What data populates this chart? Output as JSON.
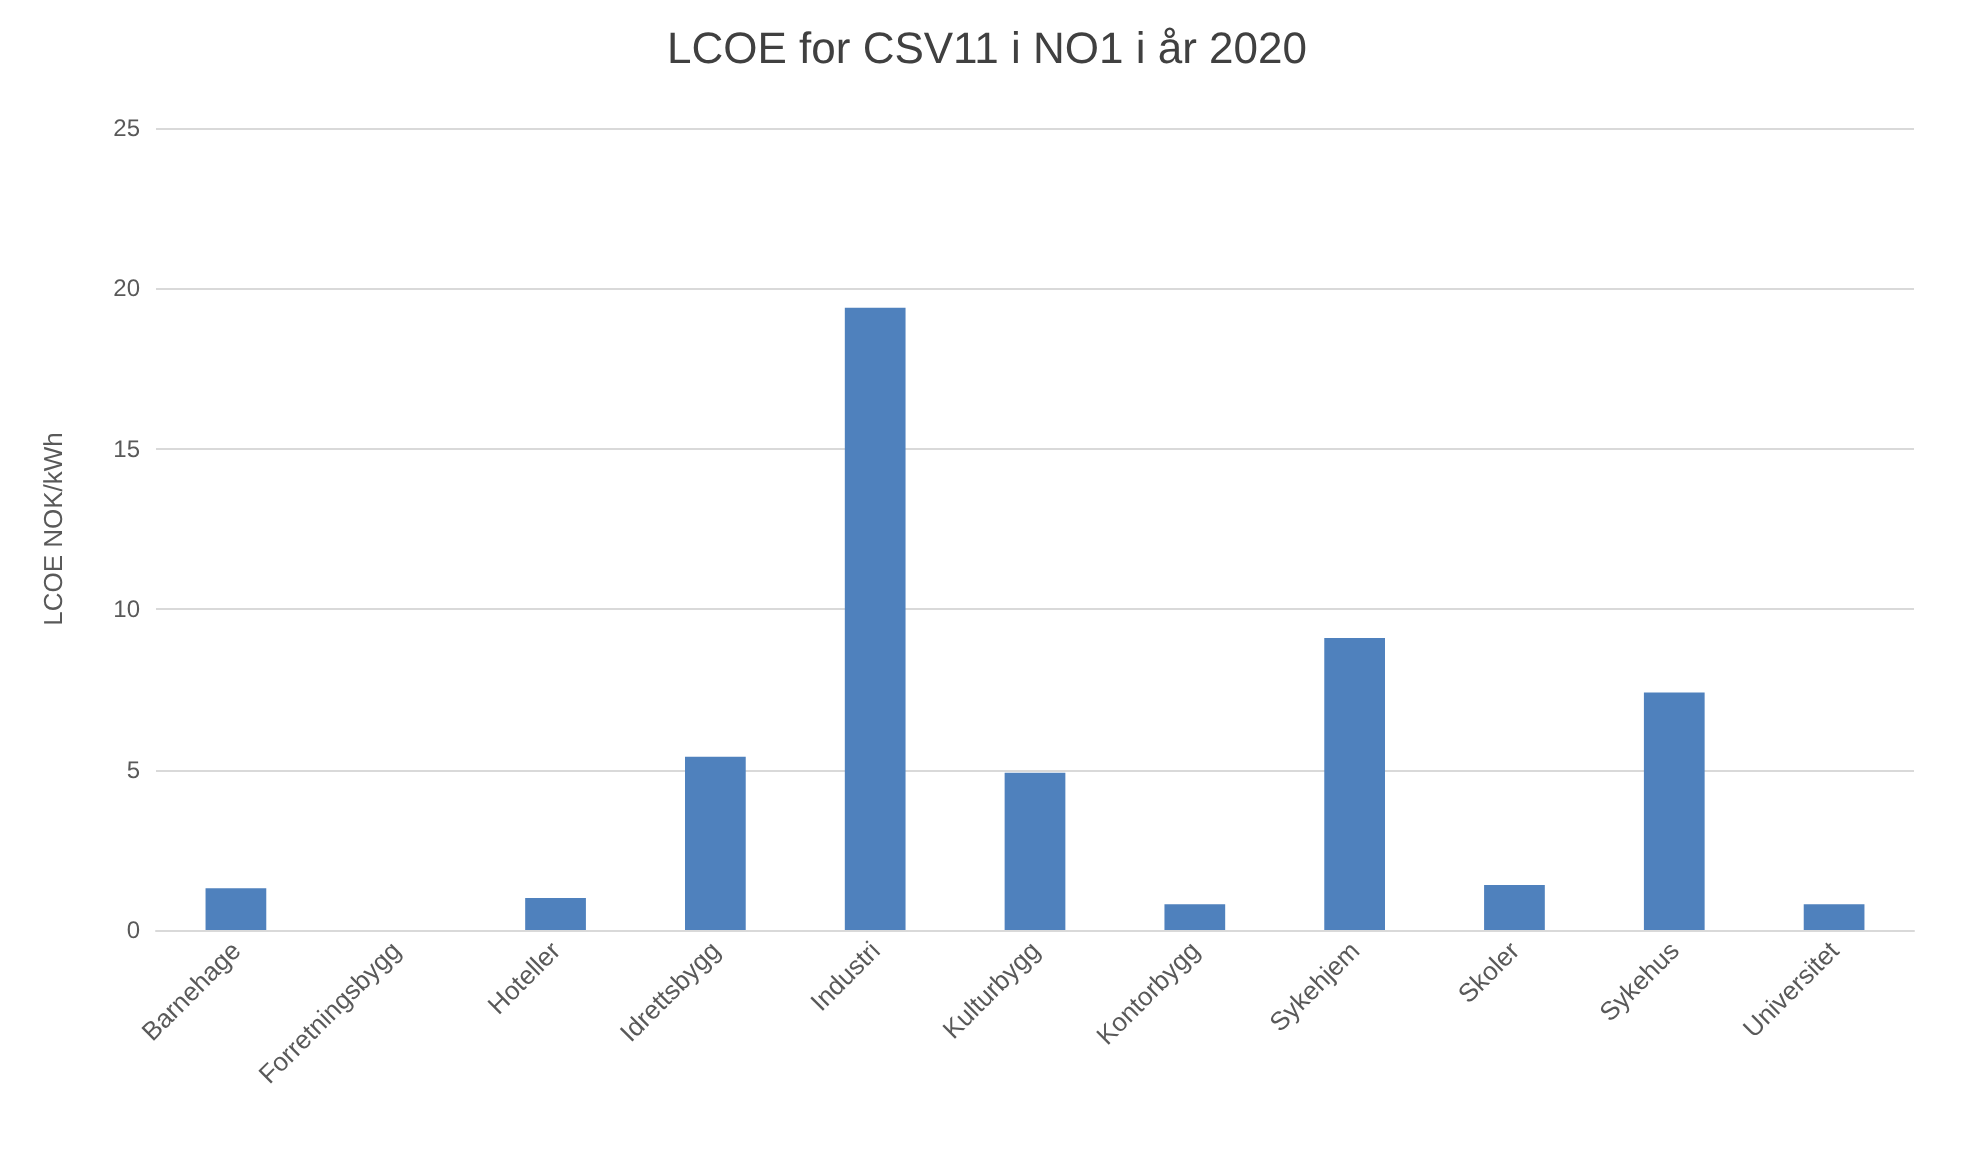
{
  "chart_data": {
    "type": "bar",
    "title": "LCOE for CSV11 i NO1 i år 2020",
    "ylabel": "LCOE NOK/kWh",
    "categories": [
      "Barnehage",
      "Forretningsbygg",
      "Hoteller",
      "Idrettsbygg",
      "Industri",
      "Kulturbygg",
      "Kontorbygg",
      "Sykehjem",
      "Skoler",
      "Sykehus",
      "Universitet"
    ],
    "values": [
      1.3,
      0,
      1.0,
      5.4,
      19.4,
      4.9,
      0.8,
      9.1,
      1.4,
      7.4,
      0.8
    ],
    "color": "#4f81bd",
    "ylim": [
      0,
      25
    ],
    "yticks": [
      0,
      5,
      10,
      15,
      20,
      25
    ],
    "grid": "y"
  }
}
